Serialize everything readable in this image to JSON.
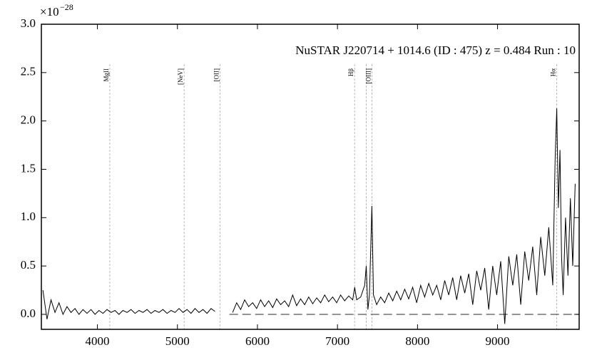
{
  "chart_data": {
    "type": "line",
    "title": "NuSTAR J220714 + 1014.6 (ID : 475)   z = 0.484   Run : 10",
    "y_scale_base": "×10",
    "y_scale_exp": "−28",
    "xlim": [
      3300,
      10020
    ],
    "ylim": [
      -0.155,
      3.0
    ],
    "xticks": [
      4000,
      5000,
      6000,
      7000,
      8000,
      9000
    ],
    "yticks": [
      {
        "value": 0,
        "label": "0.0"
      },
      0.5,
      {
        "value": 1,
        "label": "1.0"
      },
      1.5,
      {
        "value": 2,
        "label": "2.0"
      },
      2.5,
      {
        "value": 3,
        "label": "3.0"
      }
    ],
    "line_x": [
      4155,
      5084,
      5531,
      7214,
      7359,
      7430,
      9739
    ],
    "line_labels": [
      "MgII",
      "[NeV]",
      "[OII]",
      "Hβ",
      null,
      "[OIII]",
      "Hα"
    ],
    "hline": 0,
    "hline_from": 5650,
    "series": [
      {
        "color": "#000000",
        "x": [
          3320,
          3370,
          3420,
          3470,
          3520,
          3570,
          3620,
          3670,
          3720,
          3770,
          3820,
          3870,
          3920,
          3970,
          4020,
          4070,
          4120,
          4170,
          4220,
          4270,
          4320,
          4370,
          4420,
          4470,
          4520,
          4570,
          4620,
          4670,
          4720,
          4770,
          4820,
          4870,
          4920,
          4970,
          5020,
          5070,
          5120,
          5170,
          5220,
          5270,
          5320,
          5370,
          5420,
          5470,
          5500,
          5690,
          5740,
          5790,
          5840,
          5890,
          5940,
          5990,
          6040,
          6090,
          6140,
          6190,
          6240,
          6290,
          6340,
          6390,
          6440,
          6490,
          6540,
          6590,
          6640,
          6690,
          6740,
          6790,
          6840,
          6890,
          6940,
          6990,
          7040,
          7090,
          7140,
          7190,
          7215,
          7240,
          7290,
          7340,
          7360,
          7380,
          7400,
          7430,
          7450,
          7490,
          7540,
          7590,
          7640,
          7690,
          7740,
          7790,
          7840,
          7890,
          7940,
          7990,
          8040,
          8090,
          8140,
          8190,
          8240,
          8290,
          8340,
          8390,
          8440,
          8490,
          8540,
          8590,
          8640,
          8690,
          8740,
          8790,
          8840,
          8890,
          8940,
          8990,
          9040,
          9090,
          9140,
          9190,
          9240,
          9290,
          9340,
          9390,
          9440,
          9490,
          9540,
          9590,
          9640,
          9690,
          9720,
          9740,
          9760,
          9780,
          9800,
          9820,
          9850,
          9880,
          9910,
          9940,
          9970
        ],
        "values": [
          0.25,
          -0.05,
          0.15,
          0.02,
          0.12,
          0.0,
          0.08,
          0.02,
          0.06,
          0.0,
          0.05,
          0.01,
          0.05,
          0.0,
          0.04,
          0.01,
          0.05,
          0.02,
          0.04,
          0.0,
          0.04,
          0.02,
          0.05,
          0.01,
          0.04,
          0.02,
          0.05,
          0.01,
          0.04,
          0.02,
          0.05,
          0.01,
          0.04,
          0.02,
          0.06,
          0.02,
          0.05,
          0.01,
          0.06,
          0.02,
          0.05,
          0.01,
          0.06,
          0.03,
          null,
          0.02,
          0.12,
          0.05,
          0.15,
          0.08,
          0.12,
          0.06,
          0.15,
          0.08,
          0.14,
          0.07,
          0.16,
          0.1,
          0.14,
          0.08,
          0.2,
          0.09,
          0.16,
          0.1,
          0.18,
          0.11,
          0.17,
          0.12,
          0.2,
          0.13,
          0.18,
          0.12,
          0.2,
          0.14,
          0.19,
          0.15,
          0.28,
          0.15,
          0.18,
          0.3,
          0.5,
          0.05,
          0.2,
          1.12,
          0.2,
          0.1,
          0.18,
          0.12,
          0.22,
          0.14,
          0.24,
          0.15,
          0.26,
          0.16,
          0.28,
          0.12,
          0.3,
          0.18,
          0.32,
          0.2,
          0.3,
          0.15,
          0.35,
          0.2,
          0.38,
          0.15,
          0.4,
          0.22,
          0.42,
          0.1,
          0.45,
          0.25,
          0.48,
          0.05,
          0.5,
          0.2,
          0.55,
          -0.1,
          0.6,
          0.3,
          0.62,
          0.1,
          0.65,
          0.35,
          0.7,
          0.2,
          0.8,
          0.4,
          0.9,
          0.3,
          1.6,
          2.13,
          1.1,
          1.7,
          0.6,
          0.2,
          1.0,
          0.4,
          1.2,
          0.5,
          1.35
        ]
      }
    ]
  }
}
